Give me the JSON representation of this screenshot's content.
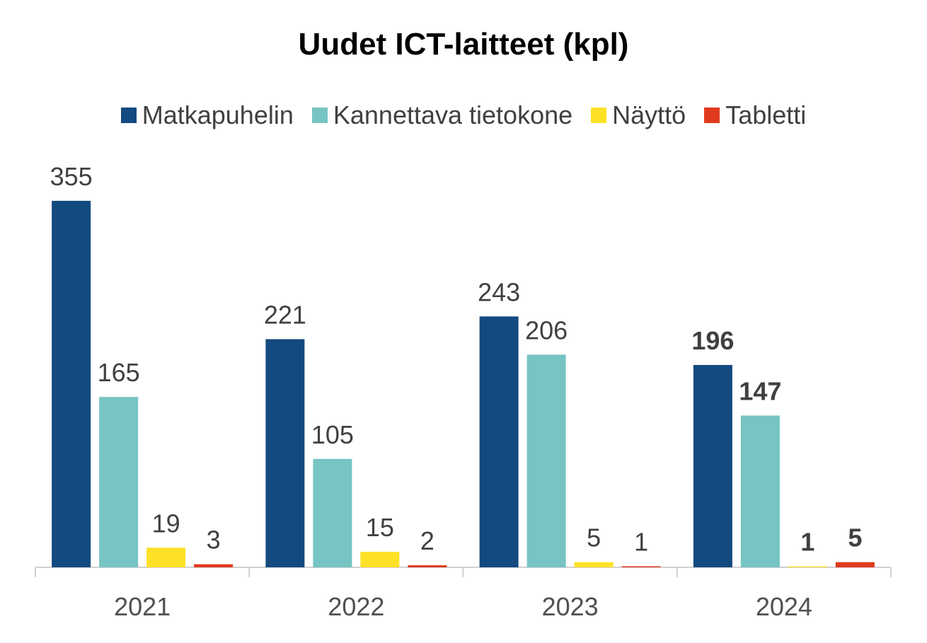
{
  "chart_data": {
    "type": "bar",
    "title": "Uudet ICT-laitteet (kpl)",
    "categories": [
      "2021",
      "2022",
      "2023",
      "2024"
    ],
    "series": [
      {
        "name": "Matkapuhelin",
        "color": "#134a7f",
        "values": [
          355,
          221,
          243,
          196
        ]
      },
      {
        "name": "Kannettava tietokone",
        "color": "#76c4c3",
        "values": [
          165,
          105,
          206,
          147
        ]
      },
      {
        "name": "Näyttö",
        "color": "#fde127",
        "values": [
          19,
          15,
          5,
          1
        ]
      },
      {
        "name": "Tabletti",
        "color": "#e03a1e",
        "values": [
          3,
          2,
          1,
          5
        ]
      }
    ],
    "bold_categories": [
      "2024"
    ],
    "ylim": [
      0,
      370
    ],
    "legend_position": "top",
    "grid": false
  }
}
